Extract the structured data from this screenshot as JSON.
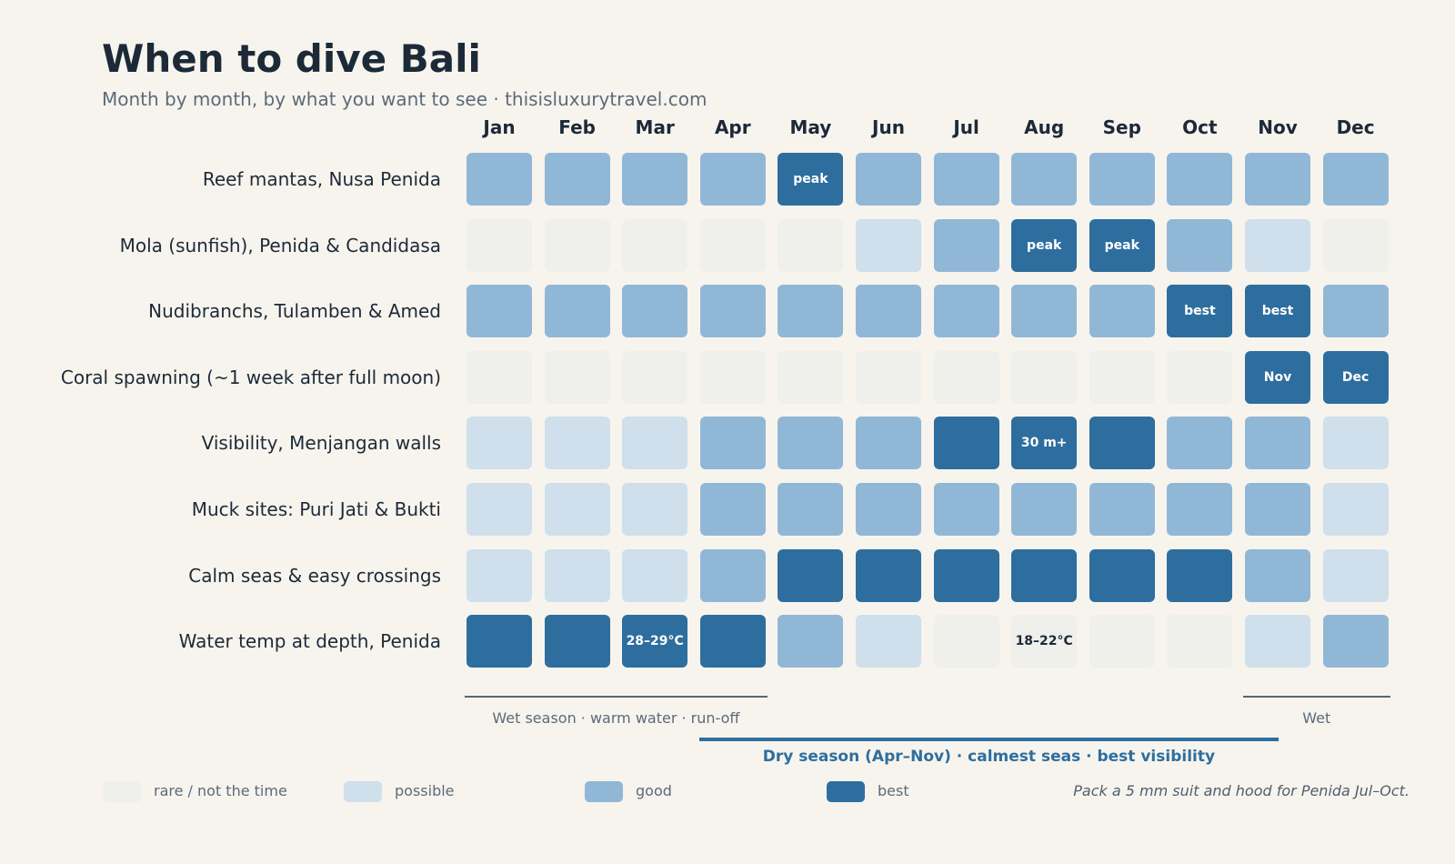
{
  "title": "When to dive Bali",
  "subtitle": "Month by month, by what you want to see  ·  thisisluxurytravel.com",
  "chart_data": {
    "type": "heatmap",
    "title": "When to dive Bali",
    "subtitle": "Month by month, by what you want to see  ·  thisisluxurytravel.com",
    "columns": [
      "Jan",
      "Feb",
      "Mar",
      "Apr",
      "May",
      "Jun",
      "Jul",
      "Aug",
      "Sep",
      "Oct",
      "Nov",
      "Dec"
    ],
    "rows": [
      {
        "label": "Reef mantas, Nusa Penida",
        "values": [
          2,
          2,
          2,
          2,
          3,
          2,
          2,
          2,
          2,
          2,
          2,
          2
        ],
        "cell_labels": [
          "",
          "",
          "",
          "",
          "peak",
          "",
          "",
          "",
          "",
          "",
          "",
          ""
        ]
      },
      {
        "label": "Mola (sunfish), Penida & Candidasa",
        "values": [
          0,
          0,
          0,
          0,
          0,
          1,
          2,
          3,
          3,
          2,
          1,
          0
        ],
        "cell_labels": [
          "",
          "",
          "",
          "",
          "",
          "",
          "",
          "peak",
          "peak",
          "",
          "",
          ""
        ]
      },
      {
        "label": "Nudibranchs, Tulamben & Amed",
        "values": [
          2,
          2,
          2,
          2,
          2,
          2,
          2,
          2,
          2,
          3,
          3,
          2
        ],
        "cell_labels": [
          "",
          "",
          "",
          "",
          "",
          "",
          "",
          "",
          "",
          "best",
          "best",
          ""
        ]
      },
      {
        "label": "Coral spawning (~1 week after full moon)",
        "values": [
          0,
          0,
          0,
          0,
          0,
          0,
          0,
          0,
          0,
          0,
          3,
          3
        ],
        "cell_labels": [
          "",
          "",
          "",
          "",
          "",
          "",
          "",
          "",
          "",
          "",
          "Nov",
          "Dec"
        ]
      },
      {
        "label": "Visibility, Menjangan walls",
        "values": [
          1,
          1,
          1,
          2,
          2,
          2,
          3,
          3,
          3,
          2,
          2,
          1
        ],
        "cell_labels": [
          "",
          "",
          "",
          "",
          "",
          "",
          "",
          "30 m+",
          "",
          "",
          "",
          ""
        ]
      },
      {
        "label": "Muck sites: Puri Jati & Bukti",
        "values": [
          1,
          1,
          1,
          2,
          2,
          2,
          2,
          2,
          2,
          2,
          2,
          1
        ],
        "cell_labels": [
          "",
          "",
          "",
          "",
          "",
          "",
          "",
          "",
          "",
          "",
          "",
          ""
        ]
      },
      {
        "label": "Calm seas & easy crossings",
        "values": [
          1,
          1,
          1,
          2,
          3,
          3,
          3,
          3,
          3,
          3,
          2,
          1
        ],
        "cell_labels": [
          "",
          "",
          "",
          "",
          "",
          "",
          "",
          "",
          "",
          "",
          "",
          ""
        ]
      },
      {
        "label": "Water temp at depth, Penida",
        "values": [
          3,
          3,
          3,
          3,
          2,
          1,
          0,
          0,
          0,
          0,
          1,
          2
        ],
        "cell_labels": [
          "",
          "",
          "28–29°C",
          "",
          "",
          "",
          "",
          "18–22°C",
          "",
          "",
          "",
          ""
        ]
      }
    ],
    "legend": [
      {
        "level": 0,
        "label": "rare / not the time",
        "color": "#efefeb"
      },
      {
        "level": 1,
        "label": "possible",
        "color": "#cfdfeb"
      },
      {
        "level": 2,
        "label": "good",
        "color": "#91b7d7"
      },
      {
        "level": 3,
        "label": "best",
        "color": "#2e6e9e"
      }
    ],
    "legend_placement": "bottom",
    "seasons": [
      {
        "label": "Wet season · warm water · run-off",
        "start": "Jan",
        "end": "Apr",
        "style": "wet"
      },
      {
        "label": "Wet",
        "start": "Nov",
        "end": "Dec",
        "style": "wet"
      },
      {
        "label": "Dry season (Apr–Nov) · calmest seas · best visibility",
        "start": "Apr",
        "end": "Nov",
        "style": "dry"
      }
    ],
    "footnote": "Pack a 5 mm suit and hood for Penida Jul–Oct."
  }
}
